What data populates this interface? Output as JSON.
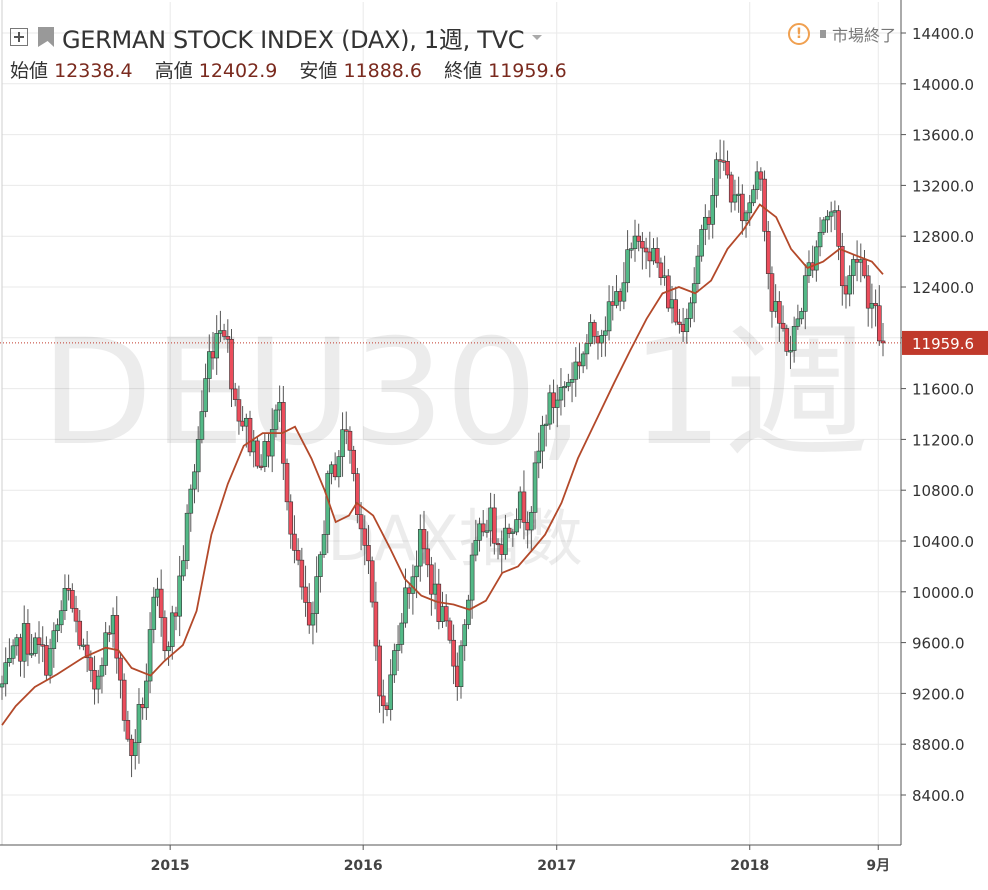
{
  "header": {
    "title": "GERMAN STOCK INDEX (DAX), 1週, TVC",
    "status": "市場終了",
    "ohlc": [
      {
        "label": "始値",
        "value": "12338.4"
      },
      {
        "label": "高値",
        "value": "12402.9"
      },
      {
        "label": "安値",
        "value": "11888.6"
      },
      {
        "label": "終値",
        "value": "11959.6"
      }
    ]
  },
  "watermark": {
    "main": "DEU30, 1週",
    "sub": "DAX指数"
  },
  "colors": {
    "up": "#53b987",
    "down": "#eb4d5c",
    "ma": "#b3492a",
    "grid": "#e9e9e9",
    "axis": "#555555",
    "last_price": "#c0392b"
  },
  "chart_data": {
    "type": "candlestick",
    "interval": "1週",
    "y_axis": {
      "min": 8200,
      "max": 14500,
      "ticks": [
        "14400.0",
        "14000.0",
        "13600.0",
        "13200.0",
        "12800.0",
        "12400.0",
        "12000.0",
        "11600.0",
        "11200.0",
        "10800.0",
        "10400.0",
        "10000.0",
        "9600.0",
        "9200.0",
        "8800.0",
        "8400.0"
      ]
    },
    "x_axis": {
      "start": "2014-02-17",
      "end": "2018-09-10",
      "labels": [
        {
          "text": "2015",
          "date": "2015-01-01"
        },
        {
          "text": "2016",
          "date": "2016-01-01"
        },
        {
          "text": "2017",
          "date": "2017-01-01"
        },
        {
          "text": "2018",
          "date": "2018-01-01"
        },
        {
          "text": "9月",
          "date": "2018-09-01"
        }
      ]
    },
    "last_price": "11959.6",
    "grid": true,
    "path": [
      [
        "2014-02-17",
        9250
      ],
      [
        "2014-04-01",
        9650
      ],
      [
        "2014-05-15",
        9450
      ],
      [
        "2014-06-20",
        10000
      ],
      [
        "2014-07-10",
        9700
      ],
      [
        "2014-08-08",
        9200
      ],
      [
        "2014-08-25",
        9550
      ],
      [
        "2014-09-18",
        9750
      ],
      [
        "2014-10-16",
        8650
      ],
      [
        "2014-11-15",
        9250
      ],
      [
        "2014-12-05",
        10000
      ],
      [
        "2014-12-20",
        9600
      ],
      [
        "2015-01-10",
        9800
      ],
      [
        "2015-02-15",
        10950
      ],
      [
        "2015-03-15",
        11850
      ],
      [
        "2015-04-10",
        12200
      ],
      [
        "2015-05-05",
        11500
      ],
      [
        "2015-06-05",
        11150
      ],
      [
        "2015-07-01",
        11050
      ],
      [
        "2015-07-25",
        11500
      ],
      [
        "2015-08-20",
        10400
      ],
      [
        "2015-09-25",
        9600
      ],
      [
        "2015-10-25",
        10800
      ],
      [
        "2015-11-30",
        11300
      ],
      [
        "2016-01-08",
        10250
      ],
      [
        "2016-02-10",
        8950
      ],
      [
        "2016-03-10",
        9800
      ],
      [
        "2016-04-20",
        10400
      ],
      [
        "2016-05-20",
        9900
      ],
      [
        "2016-06-27",
        9350
      ],
      [
        "2016-07-25",
        10200
      ],
      [
        "2016-08-20",
        10600
      ],
      [
        "2016-09-20",
        10400
      ],
      [
        "2016-10-20",
        10700
      ],
      [
        "2016-11-10",
        10600
      ],
      [
        "2016-12-10",
        11400
      ],
      [
        "2017-01-20",
        11650
      ],
      [
        "2017-03-05",
        12000
      ],
      [
        "2017-04-15",
        12200
      ],
      [
        "2017-05-20",
        12650
      ],
      [
        "2017-06-20",
        12800
      ],
      [
        "2017-07-15",
        12500
      ],
      [
        "2017-08-20",
        12100
      ],
      [
        "2017-09-10",
        12300
      ],
      [
        "2017-10-15",
        13000
      ],
      [
        "2017-11-05",
        13450
      ],
      [
        "2017-12-05",
        13050
      ],
      [
        "2017-12-25",
        12950
      ],
      [
        "2018-01-20",
        13450
      ],
      [
        "2018-02-10",
        12250
      ],
      [
        "2018-03-20",
        11900
      ],
      [
        "2018-04-20",
        12500
      ],
      [
        "2018-05-20",
        12950
      ],
      [
        "2018-06-10",
        13000
      ],
      [
        "2018-06-30",
        12300
      ],
      [
        "2018-07-25",
        12750
      ],
      [
        "2018-08-15",
        12300
      ],
      [
        "2018-09-10",
        11960
      ]
    ],
    "ma": [
      [
        "2014-02-17",
        8950
      ],
      [
        "2014-03-15",
        9100
      ],
      [
        "2014-04-20",
        9250
      ],
      [
        "2014-06-01",
        9350
      ],
      [
        "2014-07-20",
        9480
      ],
      [
        "2014-09-01",
        9560
      ],
      [
        "2014-09-25",
        9540
      ],
      [
        "2014-10-20",
        9400
      ],
      [
        "2014-11-25",
        9340
      ],
      [
        "2014-12-20",
        9450
      ],
      [
        "2015-01-25",
        9580
      ],
      [
        "2015-02-20",
        9850
      ],
      [
        "2015-03-20",
        10450
      ],
      [
        "2015-04-20",
        10850
      ],
      [
        "2015-05-20",
        11150
      ],
      [
        "2015-06-25",
        11250
      ],
      [
        "2015-08-01",
        11250
      ],
      [
        "2015-08-25",
        11300
      ],
      [
        "2015-09-25",
        11050
      ],
      [
        "2015-10-20",
        10800
      ],
      [
        "2015-11-10",
        10550
      ],
      [
        "2015-12-05",
        10600
      ],
      [
        "2015-12-20",
        10700
      ],
      [
        "2016-01-20",
        10600
      ],
      [
        "2016-02-20",
        10350
      ],
      [
        "2016-03-20",
        10100
      ],
      [
        "2016-04-20",
        9970
      ],
      [
        "2016-05-20",
        9920
      ],
      [
        "2016-06-20",
        9900
      ],
      [
        "2016-07-20",
        9860
      ],
      [
        "2016-08-20",
        9930
      ],
      [
        "2016-09-20",
        10150
      ],
      [
        "2016-10-20",
        10200
      ],
      [
        "2016-11-20",
        10350
      ],
      [
        "2016-12-10",
        10450
      ],
      [
        "2017-01-10",
        10700
      ],
      [
        "2017-02-10",
        11050
      ],
      [
        "2017-03-20",
        11380
      ],
      [
        "2017-04-20",
        11650
      ],
      [
        "2017-05-20",
        11900
      ],
      [
        "2017-06-20",
        12150
      ],
      [
        "2017-07-20",
        12350
      ],
      [
        "2017-08-20",
        12400
      ],
      [
        "2017-09-20",
        12350
      ],
      [
        "2017-10-20",
        12450
      ],
      [
        "2017-11-20",
        12700
      ],
      [
        "2017-12-20",
        12850
      ],
      [
        "2018-01-20",
        13050
      ],
      [
        "2018-02-20",
        12950
      ],
      [
        "2018-03-20",
        12700
      ],
      [
        "2018-04-20",
        12550
      ],
      [
        "2018-05-20",
        12600
      ],
      [
        "2018-06-20",
        12700
      ],
      [
        "2018-07-20",
        12650
      ],
      [
        "2018-08-20",
        12600
      ],
      [
        "2018-09-10",
        12500
      ]
    ]
  }
}
